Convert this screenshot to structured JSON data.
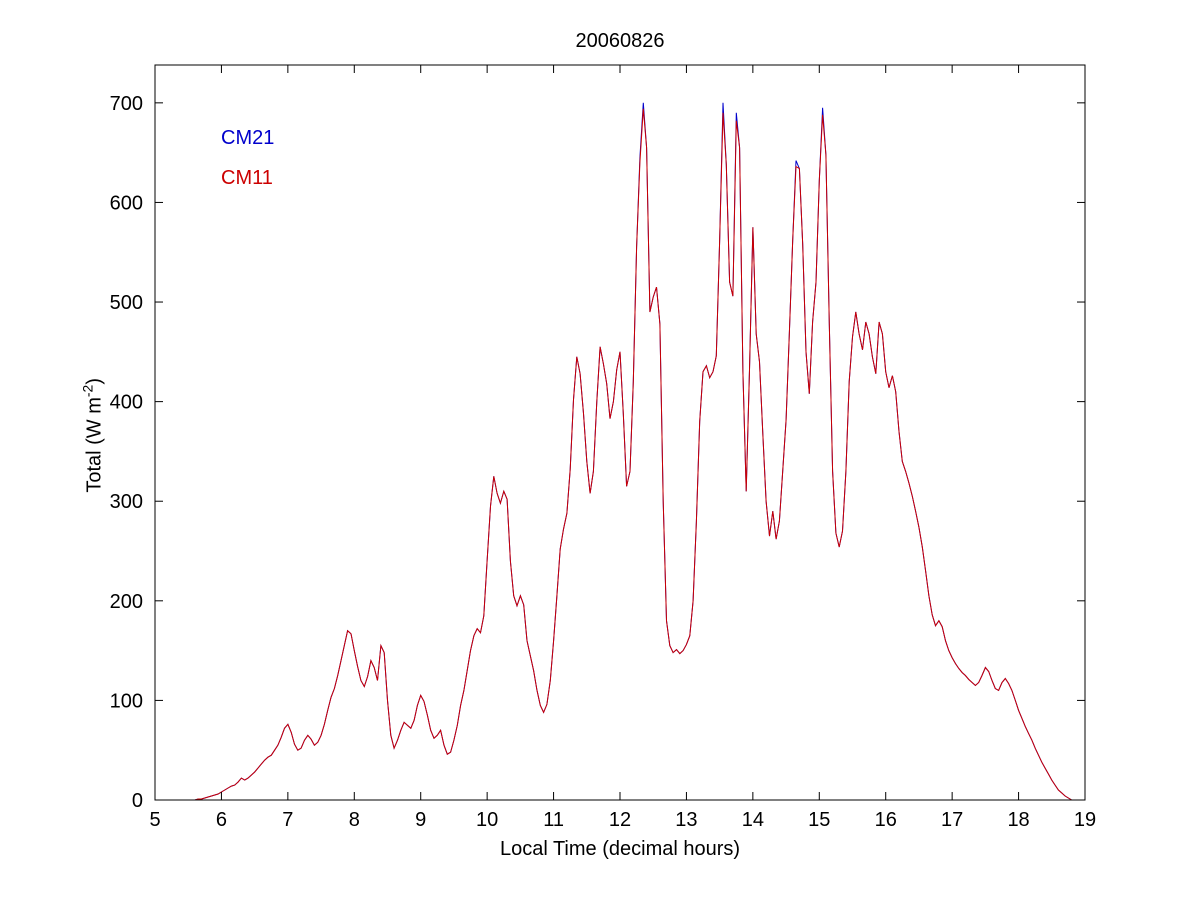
{
  "chart_data": {
    "type": "line",
    "title": "20060826",
    "xlabel": "Local Time (decimal hours)",
    "ylabel": "Total (W m^-2)",
    "ylabel_pre": "Total (W m",
    "ylabel_sup": "-2",
    "ylabel_post": ")",
    "xlim": [
      5,
      19
    ],
    "ylim": [
      0,
      738
    ],
    "xticks": [
      5,
      6,
      7,
      8,
      9,
      10,
      11,
      12,
      13,
      14,
      15,
      16,
      17,
      18,
      19
    ],
    "yticks": [
      0,
      100,
      200,
      300,
      400,
      500,
      600,
      700
    ],
    "grid": false,
    "legend_position": "upper-left-inside",
    "legend": [
      {
        "label": "CM21",
        "color": "#0000CC"
      },
      {
        "label": "CM11",
        "color": "#CC0000"
      }
    ],
    "x_start": 5.6,
    "x_step": 0.05,
    "series": [
      {
        "name": "CM21",
        "color": "#0000CC",
        "values": [
          0,
          1,
          1,
          2,
          3,
          4,
          5,
          6,
          8,
          10,
          12,
          14,
          15,
          18,
          22,
          20,
          22,
          25,
          28,
          32,
          36,
          40,
          43,
          45,
          50,
          55,
          63,
          72,
          76,
          68,
          56,
          50,
          52,
          60,
          65,
          61,
          55,
          58,
          65,
          76,
          90,
          103,
          112,
          125,
          140,
          155,
          170,
          167,
          150,
          134,
          120,
          114,
          124,
          140,
          133,
          120,
          155,
          148,
          100,
          65,
          52,
          60,
          70,
          78,
          75,
          72,
          80,
          95,
          105,
          99,
          85,
          70,
          62,
          65,
          70,
          55,
          46,
          48,
          60,
          75,
          95,
          110,
          130,
          150,
          165,
          172,
          168,
          185,
          240,
          295,
          325,
          308,
          298,
          310,
          302,
          240,
          205,
          195,
          205,
          196,
          160,
          145,
          130,
          110,
          95,
          88,
          96,
          120,
          160,
          205,
          252,
          272,
          288,
          332,
          402,
          445,
          428,
          388,
          340,
          308,
          330,
          400,
          455,
          438,
          418,
          383,
          400,
          432,
          450,
          388,
          315,
          330,
          420,
          555,
          645,
          700,
          655,
          490,
          505,
          515,
          478,
          300,
          180,
          155,
          148,
          151,
          147,
          150,
          156,
          165,
          200,
          280,
          380,
          430,
          436,
          424,
          430,
          446,
          560,
          700,
          638,
          520,
          506,
          690,
          655,
          430,
          310,
          432,
          575,
          468,
          440,
          368,
          300,
          265,
          290,
          262,
          280,
          330,
          382,
          470,
          562,
          642,
          634,
          558,
          450,
          408,
          480,
          520,
          622,
          695,
          648,
          478,
          330,
          268,
          254,
          270,
          330,
          420,
          465,
          490,
          468,
          452,
          480,
          468,
          445,
          428,
          480,
          468,
          430,
          414,
          426,
          410,
          370,
          340,
          330,
          318,
          305,
          290,
          274,
          254,
          230,
          205,
          186,
          175,
          180,
          174,
          160,
          150,
          143,
          137,
          132,
          128,
          125,
          121,
          118,
          115,
          118,
          125,
          133,
          129,
          120,
          112,
          110,
          118,
          122,
          117,
          110,
          100,
          90,
          82,
          74,
          67,
          60,
          52,
          45,
          38,
          32,
          26,
          20,
          15,
          10,
          7,
          4,
          2,
          0
        ]
      },
      {
        "name": "CM11",
        "color": "#CC0000",
        "values": [
          0,
          1,
          1,
          2,
          3,
          4,
          5,
          6,
          8,
          10,
          12,
          14,
          15,
          18,
          22,
          20,
          22,
          25,
          28,
          32,
          36,
          40,
          43,
          45,
          50,
          55,
          63,
          72,
          76,
          68,
          56,
          50,
          52,
          60,
          65,
          61,
          55,
          58,
          65,
          76,
          90,
          103,
          112,
          125,
          140,
          155,
          170,
          167,
          150,
          134,
          120,
          114,
          124,
          140,
          133,
          120,
          155,
          148,
          100,
          65,
          52,
          60,
          70,
          78,
          75,
          72,
          80,
          95,
          105,
          99,
          85,
          70,
          62,
          65,
          70,
          55,
          46,
          48,
          60,
          75,
          95,
          110,
          130,
          150,
          165,
          172,
          168,
          185,
          240,
          295,
          325,
          308,
          298,
          310,
          302,
          240,
          205,
          195,
          205,
          196,
          160,
          145,
          130,
          110,
          95,
          88,
          96,
          120,
          160,
          205,
          252,
          272,
          288,
          332,
          402,
          445,
          428,
          388,
          340,
          308,
          330,
          400,
          455,
          438,
          418,
          383,
          400,
          432,
          450,
          388,
          315,
          330,
          420,
          555,
          640,
          694,
          655,
          490,
          505,
          515,
          478,
          300,
          180,
          155,
          148,
          151,
          147,
          150,
          156,
          165,
          200,
          280,
          380,
          430,
          436,
          424,
          430,
          446,
          560,
          690,
          638,
          520,
          506,
          682,
          655,
          430,
          310,
          432,
          575,
          468,
          440,
          368,
          300,
          265,
          290,
          262,
          280,
          330,
          382,
          470,
          562,
          636,
          634,
          558,
          450,
          408,
          480,
          520,
          622,
          688,
          648,
          478,
          330,
          268,
          254,
          270,
          330,
          420,
          465,
          490,
          468,
          452,
          480,
          468,
          445,
          428,
          480,
          468,
          430,
          414,
          426,
          410,
          370,
          340,
          330,
          318,
          305,
          290,
          274,
          254,
          230,
          205,
          186,
          175,
          180,
          174,
          160,
          150,
          143,
          137,
          132,
          128,
          125,
          121,
          118,
          115,
          118,
          125,
          133,
          129,
          120,
          112,
          110,
          118,
          122,
          117,
          110,
          100,
          90,
          82,
          74,
          67,
          60,
          52,
          45,
          38,
          32,
          26,
          20,
          15,
          10,
          7,
          4,
          2,
          0
        ]
      }
    ]
  }
}
